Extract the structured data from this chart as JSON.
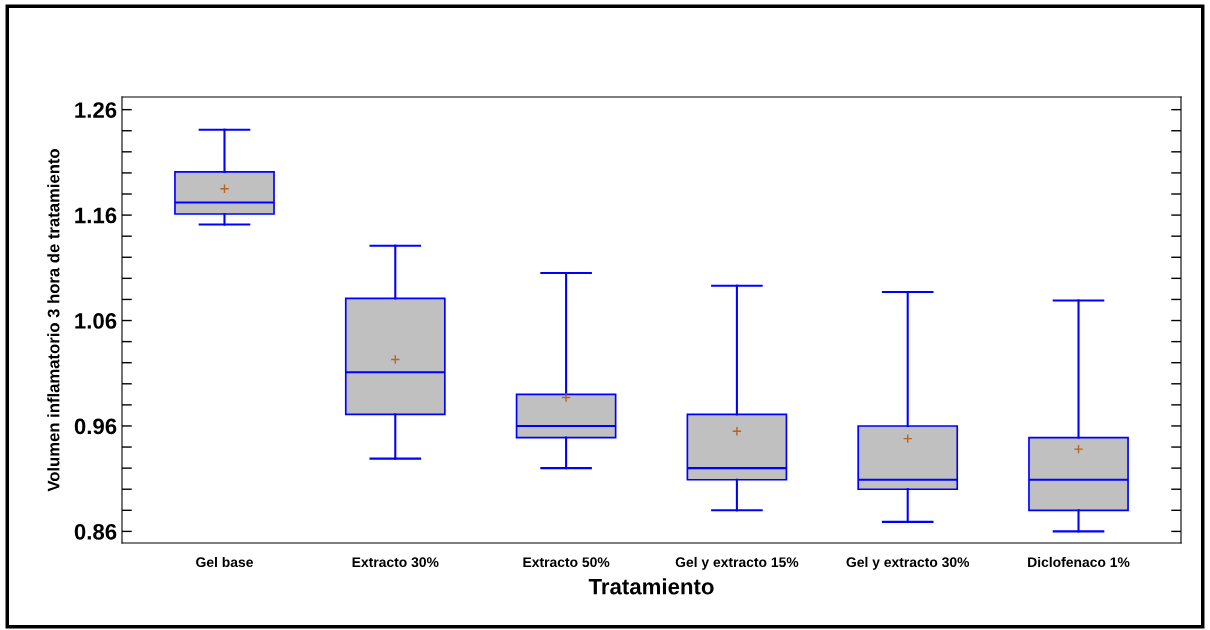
{
  "chart_data": {
    "type": "box",
    "xlabel": "Tratamiento",
    "ylabel": "Volumen inflamatorio 3 hora de tratamiento",
    "categories": [
      "Gel base",
      "Extracto 30%",
      "Extracto 50%",
      "Gel y extracto 15%",
      "Gel y extracto 30%",
      "Diclofenaco 1%"
    ],
    "boxes": [
      {
        "low": 1.151,
        "q1": 1.161,
        "median": 1.172,
        "q3": 1.201,
        "high": 1.241,
        "mean": 1.185
      },
      {
        "low": 0.929,
        "q1": 0.971,
        "median": 1.011,
        "q3": 1.081,
        "high": 1.131,
        "mean": 1.023
      },
      {
        "low": 0.92,
        "q1": 0.949,
        "median": 0.96,
        "q3": 0.99,
        "high": 1.105,
        "mean": 0.987
      },
      {
        "low": 0.88,
        "q1": 0.909,
        "median": 0.92,
        "q3": 0.971,
        "high": 1.093,
        "mean": 0.955
      },
      {
        "low": 0.869,
        "q1": 0.9,
        "median": 0.909,
        "q3": 0.96,
        "high": 1.087,
        "mean": 0.948
      },
      {
        "low": 0.86,
        "q1": 0.88,
        "median": 0.909,
        "q3": 0.949,
        "high": 1.079,
        "mean": 0.938
      }
    ],
    "color": "#c0c0c0",
    "ylim": [
      0.849,
      1.272
    ],
    "yticks": [
      {
        "value": 0.86,
        "label": "0.86"
      },
      {
        "value": 0.88,
        "label": null
      },
      {
        "value": 0.9,
        "label": null
      },
      {
        "value": 0.92,
        "label": null
      },
      {
        "value": 0.94,
        "label": null
      },
      {
        "value": 0.96,
        "label": "0.96"
      },
      {
        "value": 0.98,
        "label": null
      },
      {
        "value": 1.0,
        "label": null
      },
      {
        "value": 1.02,
        "label": null
      },
      {
        "value": 1.04,
        "label": null
      },
      {
        "value": 1.06,
        "label": "1.06"
      },
      {
        "value": 1.08,
        "label": null
      },
      {
        "value": 1.1,
        "label": null
      },
      {
        "value": 1.12,
        "label": null
      },
      {
        "value": 1.14,
        "label": null
      },
      {
        "value": 1.16,
        "label": "1.16"
      },
      {
        "value": 1.18,
        "label": null
      },
      {
        "value": 1.2,
        "label": null
      },
      {
        "value": 1.22,
        "label": null
      },
      {
        "value": 1.24,
        "label": null
      },
      {
        "value": 1.26,
        "label": "1.26"
      }
    ],
    "grid": false,
    "legend": false
  }
}
